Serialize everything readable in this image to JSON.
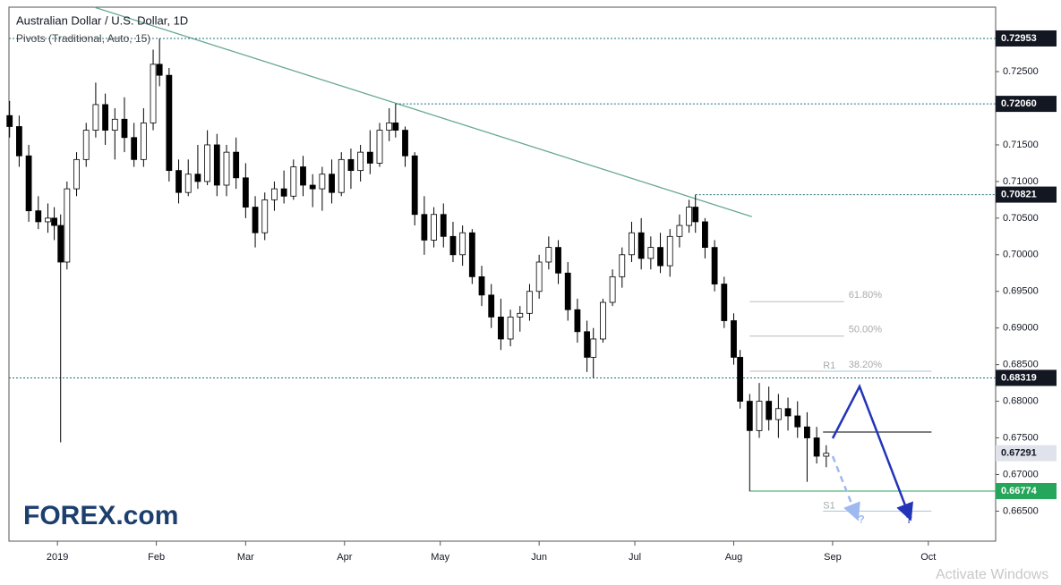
{
  "chart_data": {
    "type": "candlestick",
    "title": "Australian Dollar / U.S. Dollar, 1D",
    "subtitle": "Pivots (Traditional, Auto, 15)",
    "xlim": [
      -15.2,
      294.1
    ],
    "ylim": [
      0.6609,
      0.7338
    ],
    "xticks": [
      {
        "value": 0,
        "label": "2019"
      },
      {
        "value": 31,
        "label": "Feb"
      },
      {
        "value": 59,
        "label": "Mar"
      },
      {
        "value": 90,
        "label": "Apr"
      },
      {
        "value": 120,
        "label": "May"
      },
      {
        "value": 151,
        "label": "Jun"
      },
      {
        "value": 181,
        "label": "Jul"
      },
      {
        "value": 212,
        "label": "Aug"
      },
      {
        "value": 243,
        "label": "Sep"
      },
      {
        "value": 273,
        "label": "Oct"
      }
    ],
    "yticks": [
      {
        "value": 0.725,
        "label": "0.72500"
      },
      {
        "value": 0.715,
        "label": "0.71500"
      },
      {
        "value": 0.71,
        "label": "0.71000"
      },
      {
        "value": 0.705,
        "label": "0.70500"
      },
      {
        "value": 0.7,
        "label": "0.70000"
      },
      {
        "value": 0.695,
        "label": "0.69500"
      },
      {
        "value": 0.69,
        "label": "0.69000"
      },
      {
        "value": 0.685,
        "label": "0.68500"
      },
      {
        "value": 0.68,
        "label": "0.68000"
      },
      {
        "value": 0.675,
        "label": "0.67500"
      },
      {
        "value": 0.67,
        "label": "0.67000"
      },
      {
        "value": 0.665,
        "label": "0.66500"
      }
    ],
    "x": [
      -15,
      -12,
      -9,
      -6,
      -3,
      -1,
      1,
      3,
      6,
      9,
      12,
      15,
      18,
      21,
      24,
      27,
      30,
      32,
      35,
      38,
      41,
      44,
      47,
      50,
      53,
      56,
      59,
      62,
      65,
      68,
      71,
      74,
      77,
      80,
      83,
      86,
      89,
      92,
      95,
      98,
      101,
      104,
      106,
      109,
      112,
      115,
      118,
      121,
      124,
      127,
      130,
      133,
      136,
      139,
      142,
      145,
      148,
      151,
      154,
      157,
      160,
      163,
      166,
      168,
      171,
      174,
      177,
      180,
      183,
      186,
      189,
      192,
      195,
      198,
      200,
      203,
      206,
      209,
      212,
      214,
      217,
      220,
      223,
      226,
      229,
      232,
      235,
      238,
      241
    ],
    "open": [
      0.719,
      0.7175,
      0.7135,
      0.706,
      0.7045,
      0.705,
      0.704,
      0.699,
      0.709,
      0.713,
      0.717,
      0.7205,
      0.717,
      0.7185,
      0.716,
      0.713,
      0.718,
      0.726,
      0.7245,
      0.7115,
      0.7085,
      0.711,
      0.71,
      0.715,
      0.7095,
      0.714,
      0.7105,
      0.7065,
      0.703,
      0.7075,
      0.709,
      0.708,
      0.712,
      0.7095,
      0.709,
      0.711,
      0.7085,
      0.713,
      0.7115,
      0.714,
      0.7125,
      0.717,
      0.718,
      0.717,
      0.7135,
      0.7055,
      0.702,
      0.7055,
      0.7025,
      0.7,
      0.703,
      0.697,
      0.6945,
      0.6915,
      0.6885,
      0.6915,
      0.692,
      0.695,
      0.699,
      0.701,
      0.6975,
      0.6925,
      0.6895,
      0.686,
      0.6885,
      0.6935,
      0.697,
      0.7,
      0.703,
      0.6995,
      0.701,
      0.6985,
      0.7025,
      0.704,
      0.7065,
      0.7045,
      0.701,
      0.696,
      0.691,
      0.686,
      0.68,
      0.676,
      0.68,
      0.6775,
      0.679,
      0.678,
      0.6765,
      0.675,
      0.6725
    ],
    "high": [
      0.721,
      0.719,
      0.715,
      0.708,
      0.707,
      0.7065,
      0.7055,
      0.71,
      0.714,
      0.718,
      0.7235,
      0.722,
      0.72,
      0.7215,
      0.718,
      0.72,
      0.728,
      0.7295,
      0.7255,
      0.713,
      0.713,
      0.715,
      0.717,
      0.7165,
      0.715,
      0.716,
      0.7125,
      0.708,
      0.7085,
      0.71,
      0.7115,
      0.713,
      0.7135,
      0.711,
      0.712,
      0.713,
      0.714,
      0.7145,
      0.715,
      0.717,
      0.718,
      0.72,
      0.7206,
      0.7175,
      0.714,
      0.708,
      0.7065,
      0.707,
      0.7045,
      0.704,
      0.7035,
      0.6985,
      0.696,
      0.694,
      0.6925,
      0.693,
      0.696,
      0.7,
      0.7025,
      0.702,
      0.699,
      0.694,
      0.691,
      0.69,
      0.694,
      0.698,
      0.701,
      0.7045,
      0.705,
      0.7025,
      0.703,
      0.7035,
      0.7055,
      0.7075,
      0.7082,
      0.705,
      0.702,
      0.697,
      0.692,
      0.687,
      0.681,
      0.6825,
      0.682,
      0.681,
      0.6805,
      0.68,
      0.6785,
      0.6765,
      0.674
    ],
    "low": [
      0.716,
      0.712,
      0.7045,
      0.7035,
      0.703,
      0.702,
      0.6744,
      0.698,
      0.708,
      0.712,
      0.716,
      0.715,
      0.713,
      0.714,
      0.712,
      0.712,
      0.717,
      0.723,
      0.71,
      0.707,
      0.708,
      0.709,
      0.7095,
      0.708,
      0.708,
      0.709,
      0.705,
      0.701,
      0.702,
      0.706,
      0.707,
      0.7075,
      0.708,
      0.7065,
      0.706,
      0.707,
      0.708,
      0.709,
      0.71,
      0.711,
      0.712,
      0.7155,
      0.716,
      0.712,
      0.704,
      0.7,
      0.701,
      0.701,
      0.699,
      0.6985,
      0.696,
      0.693,
      0.69,
      0.687,
      0.6875,
      0.6895,
      0.691,
      0.694,
      0.698,
      0.696,
      0.691,
      0.688,
      0.684,
      0.6832,
      0.688,
      0.693,
      0.6955,
      0.699,
      0.698,
      0.698,
      0.6975,
      0.697,
      0.701,
      0.703,
      0.703,
      0.6995,
      0.695,
      0.69,
      0.685,
      0.679,
      0.6677,
      0.675,
      0.676,
      0.675,
      0.676,
      0.675,
      0.669,
      0.6715,
      0.671
    ],
    "close": [
      0.7175,
      0.7135,
      0.706,
      0.7045,
      0.705,
      0.704,
      0.699,
      0.709,
      0.713,
      0.717,
      0.7205,
      0.717,
      0.7185,
      0.716,
      0.713,
      0.718,
      0.726,
      0.7245,
      0.7115,
      0.7085,
      0.711,
      0.71,
      0.715,
      0.7095,
      0.714,
      0.7105,
      0.7065,
      0.703,
      0.7075,
      0.709,
      0.708,
      0.712,
      0.7095,
      0.709,
      0.711,
      0.7085,
      0.713,
      0.7115,
      0.714,
      0.7125,
      0.717,
      0.718,
      0.717,
      0.7135,
      0.7055,
      0.702,
      0.7055,
      0.7025,
      0.7,
      0.703,
      0.697,
      0.6945,
      0.6915,
      0.6885,
      0.6915,
      0.692,
      0.695,
      0.699,
      0.701,
      0.6975,
      0.6925,
      0.6895,
      0.686,
      0.6885,
      0.6935,
      0.697,
      0.7,
      0.703,
      0.6995,
      0.701,
      0.6985,
      0.7025,
      0.704,
      0.7065,
      0.7045,
      0.701,
      0.696,
      0.691,
      0.686,
      0.68,
      0.676,
      0.68,
      0.6775,
      0.679,
      0.678,
      0.6765,
      0.675,
      0.6725,
      0.6729
    ],
    "up_color": "#ffffff",
    "down_color": "#000000",
    "levels": [
      {
        "value": 0.72953,
        "start": -15.2,
        "color": "#131722",
        "text_color": "#ffffff"
      },
      {
        "value": 0.7206,
        "label": "0.72060",
        "start": 106,
        "color": "#131722",
        "text_color": "#ffffff"
      },
      {
        "value": 0.70821,
        "start": 200,
        "color": "#131722",
        "text_color": "#ffffff"
      },
      {
        "value": 0.68319,
        "start": -15.2,
        "color": "#131722",
        "text_color": "#ffffff"
      },
      {
        "value": 0.67291,
        "color": "#e0e3eb",
        "text_color": "#131722"
      },
      {
        "value": 0.66774,
        "start": 217,
        "color": "#26a65b",
        "text_color": "#ffffff"
      }
    ],
    "trendline": {
      "x": [
        11.5,
        217.7
      ],
      "y": [
        0.7338,
        0.7052
      ],
      "color": "#6aa893"
    },
    "fib": {
      "start": 217,
      "end": 246.6,
      "levels": [
        {
          "value": 0.6936,
          "label": "61.80%"
        },
        {
          "value": 0.6889,
          "label": "50.00%"
        },
        {
          "value": 0.6841,
          "label": "38.20%"
        }
      ]
    },
    "pivots": {
      "start": 240,
      "end": 274,
      "levels": [
        {
          "value": 0.6841,
          "label": "R1"
        },
        {
          "value": 0.6758
        },
        {
          "value": 0.665,
          "label": "S1"
        }
      ]
    },
    "annotations": [
      {
        "text": "?",
        "x": 252,
        "y": 0.6638,
        "color": "#9fb8f0"
      },
      {
        "text": "?",
        "x": 267,
        "y": 0.6638,
        "color": "#2234b8"
      }
    ],
    "logo": "FOREX.com",
    "watermark": "Activate Windows"
  }
}
